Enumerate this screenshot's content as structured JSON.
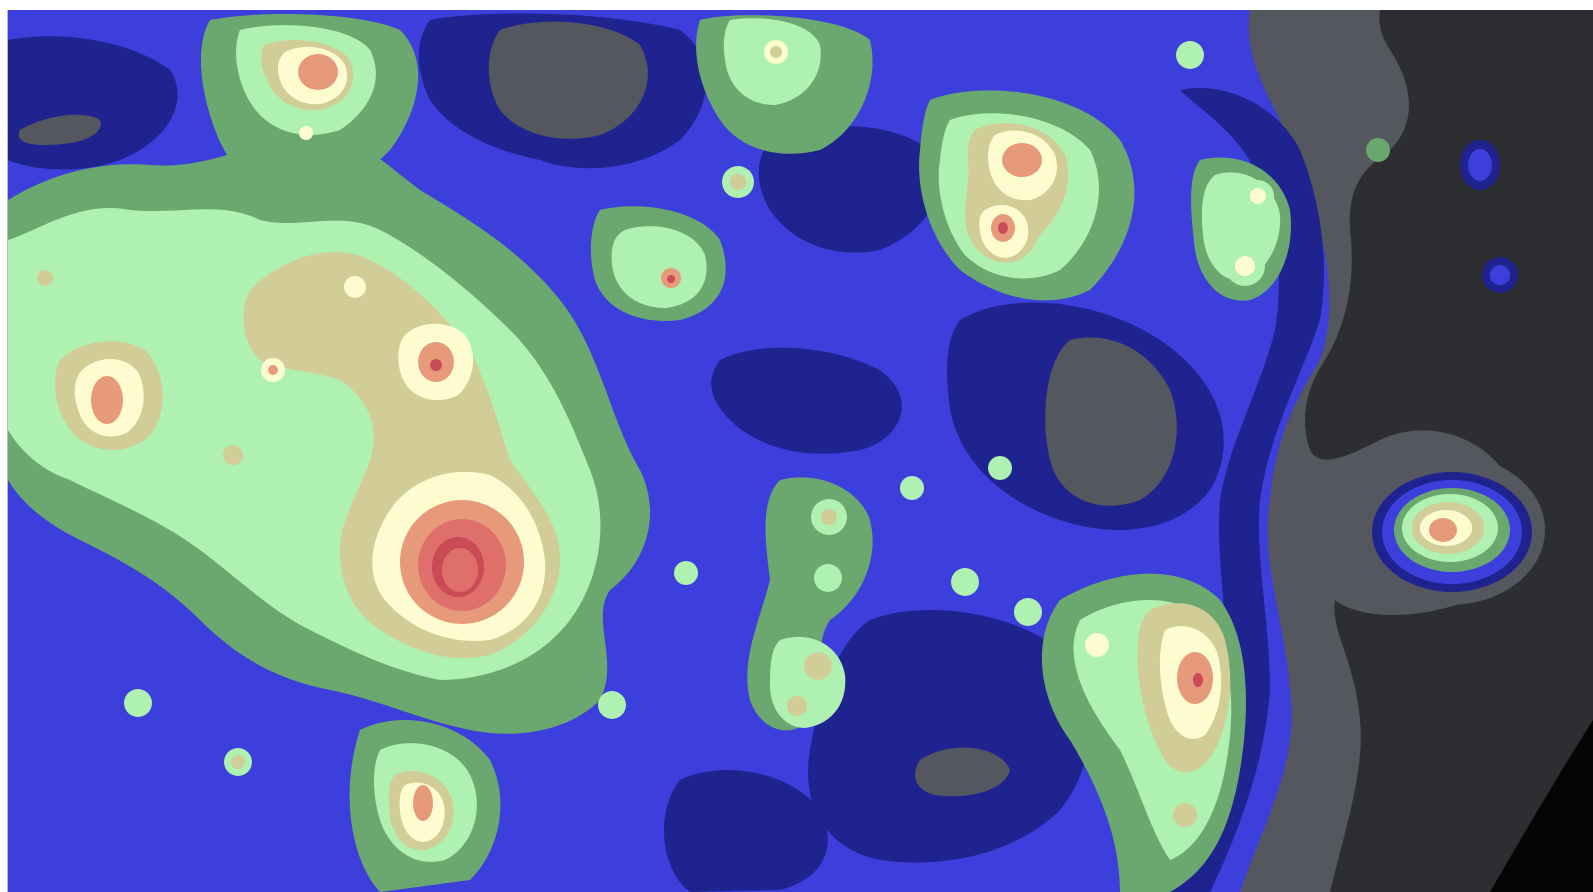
{
  "map": {
    "kind": "light pollution contour map",
    "palette": {
      "background": "#ffffff",
      "border": "#b8b8b8",
      "black": "#050505",
      "charcoal": "#2d2e32",
      "gray": "#55575f",
      "navy": "#1f2390",
      "blue": "#3c3fdb",
      "green": "#6aa86f",
      "light_green": "#aef1b0",
      "tan": "#d2cc97",
      "cream": "#fdfcd0",
      "salmon": "#e79a7a",
      "rose": "#df6f6a",
      "red": "#c94b55"
    }
  }
}
